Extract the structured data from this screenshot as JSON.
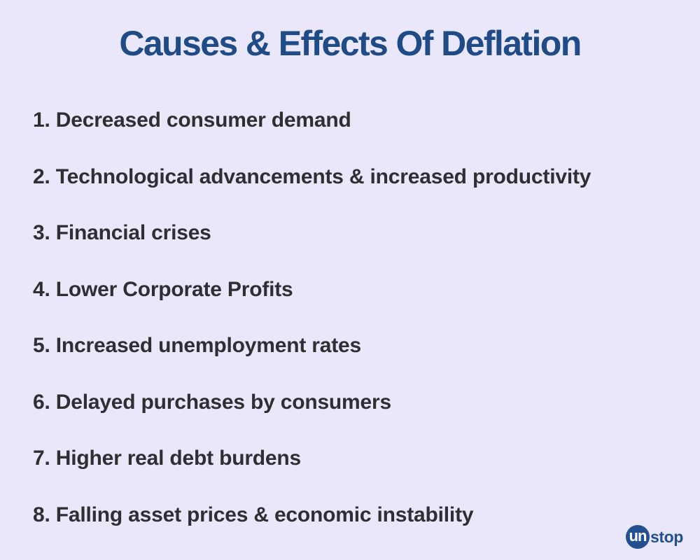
{
  "title": "Causes & Effects Of Deflation",
  "items": [
    {
      "text": "1. Decreased consumer demand"
    },
    {
      "text": "2. Technological advancements & increased productivity"
    },
    {
      "text": "3. Financial crises"
    },
    {
      "text": "4. Lower Corporate Profits"
    },
    {
      "text": "5. Increased unemployment rates"
    },
    {
      "text": "6. Delayed purchases by consumers"
    },
    {
      "text": "7. Higher real debt burdens"
    },
    {
      "text": "8. Falling asset prices & economic instability"
    }
  ],
  "logo": {
    "mark": "un",
    "word": "stop"
  },
  "colors": {
    "background": "#eae7fb",
    "title": "#1f4c86",
    "text": "#2f2f33",
    "brand": "#23508f"
  }
}
